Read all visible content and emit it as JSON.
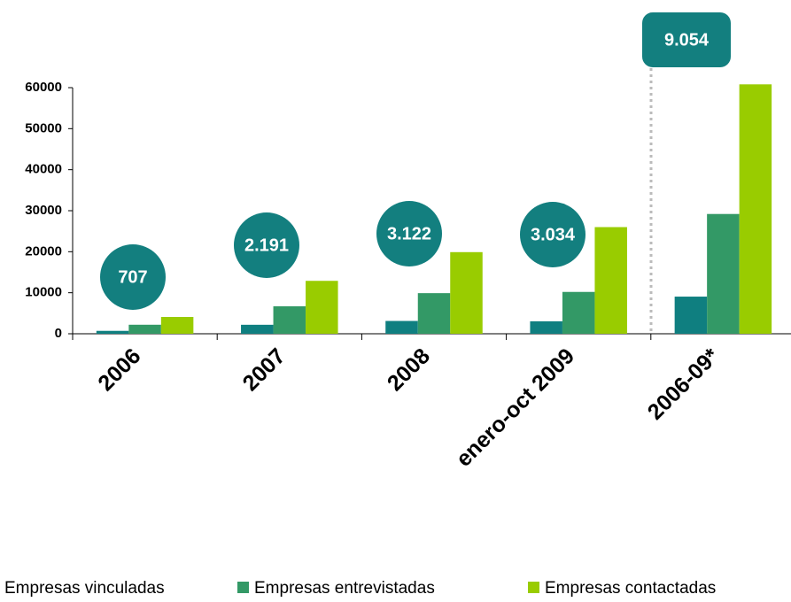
{
  "chart_data": {
    "type": "bar",
    "categories": [
      "2006",
      "2007",
      "2008",
      "enero-oct 2009",
      "2006-09*"
    ],
    "series": [
      {
        "name": "Empresas vinculadas",
        "color": "#0f7f80",
        "values": [
          707,
          2191,
          3122,
          3034,
          9054
        ],
        "value_labels": [
          "707",
          "2.191",
          "3.122",
          "3.034",
          "9.054"
        ]
      },
      {
        "name": "Empresas entrevistadas",
        "color": "#339966",
        "values": [
          2200,
          6700,
          9900,
          10200,
          29200
        ]
      },
      {
        "name": "Empresas contactadas",
        "color": "#99cc00",
        "values": [
          4100,
          12900,
          19900,
          26000,
          60800
        ]
      }
    ],
    "ylim": [
      0,
      60000
    ],
    "yticks": [
      0,
      10000,
      20000,
      30000,
      40000,
      50000,
      60000
    ],
    "grid": false
  }
}
